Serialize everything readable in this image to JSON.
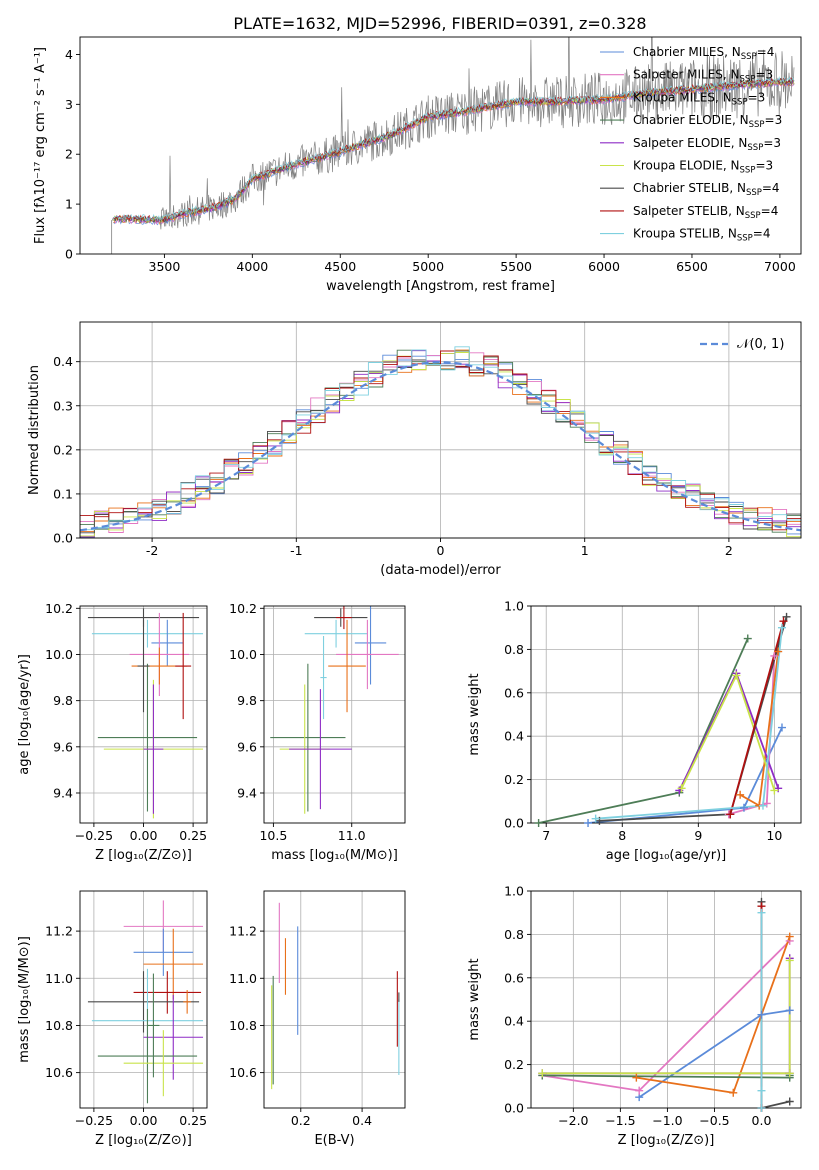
{
  "figure_title": "PLATE=1632, MJD=52996, FIBERID=0391, z=0.328",
  "colors": {
    "Chabrier MILES": "#5b8bd9",
    "Salpeter MILES": "#e377c2",
    "Kroupa MILES": "#e8701a",
    "Chabrier ELODIE": "#4e7d57",
    "Salpeter ELODIE": "#8e2cc5",
    "Kroupa ELODIE": "#c9e34a",
    "Chabrier STELIB": "#4a4a4a",
    "Salpeter STELIB": "#b01010",
    "Kroupa STELIB": "#7fd0df",
    "data": "#808080",
    "normal": "#5b8bd9"
  },
  "chart_data": [
    {
      "id": "spectrum",
      "type": "line",
      "title": "PLATE=1632, MJD=52996, FIBERID=0391, z=0.328",
      "xlabel": "wavelength [Angstrom, rest frame]",
      "ylabel": "Flux [fλ10⁻¹⁷ erg cm⁻² s⁻¹ A⁻¹]",
      "xlim": [
        3020,
        7120
      ],
      "ylim": [
        0,
        4.35
      ],
      "xticks": [
        3500,
        4000,
        4500,
        5000,
        5500,
        6000,
        6500,
        7000
      ],
      "yticks": [
        0,
        1,
        2,
        3,
        4
      ],
      "legend_position": "right",
      "legend": [
        {
          "base": "Chabrier MILES, N",
          "sub": "SSP",
          "tail": "=4"
        },
        {
          "base": "Salpeter MILES, N",
          "sub": "SSP",
          "tail": "=3"
        },
        {
          "base": "Kroupa MILES, N",
          "sub": "SSP",
          "tail": "=3"
        },
        {
          "base": "Chabrier ELODIE, N",
          "sub": "SSP",
          "tail": "=3"
        },
        {
          "base": "Salpeter ELODIE, N",
          "sub": "SSP",
          "tail": "=3"
        },
        {
          "base": "Kroupa ELODIE, N",
          "sub": "SSP",
          "tail": "=3"
        },
        {
          "base": "Chabrier STELIB, N",
          "sub": "SSP",
          "tail": "=4"
        },
        {
          "base": "Salpeter STELIB, N",
          "sub": "SSP",
          "tail": "=4"
        },
        {
          "base": "Kroupa STELIB, N",
          "sub": "SSP",
          "tail": "=4"
        }
      ],
      "series_order": [
        "Chabrier MILES",
        "Salpeter MILES",
        "Kroupa MILES",
        "Chabrier ELODIE",
        "Salpeter ELODIE",
        "Kroupa ELODIE",
        "Chabrier STELIB",
        "Salpeter STELIB",
        "Kroupa STELIB"
      ],
      "model_continuum": {
        "x": [
          3200,
          3300,
          3500,
          3600,
          3700,
          3800,
          3900,
          4000,
          4200,
          4500,
          4800,
          5000,
          5200,
          5500,
          5700,
          6000,
          6300,
          6500,
          6800,
          7000
        ],
        "y": [
          0.7,
          0.7,
          0.68,
          0.8,
          0.87,
          0.95,
          1.1,
          1.5,
          1.75,
          2.05,
          2.4,
          2.75,
          2.85,
          3.05,
          3.05,
          3.1,
          3.25,
          3.3,
          3.4,
          3.45
        ]
      },
      "data_range": [
        3200,
        7080
      ],
      "data_base_noise": 0.25,
      "data_noise_growth": 0.45
    },
    {
      "id": "residual-hist",
      "type": "bar",
      "xlabel": "(data-model)/error",
      "ylabel": "Normed distribution",
      "xlim": [
        -2.5,
        2.5
      ],
      "ylim": [
        0,
        0.49
      ],
      "xticks": [
        -2,
        -1,
        0,
        1,
        2
      ],
      "yticks": [
        0.0,
        0.1,
        0.2,
        0.3,
        0.4
      ],
      "legend_position": "upper right",
      "legend_label": "𝒩(0, 1)",
      "bin_width": 0.1,
      "series_order": [
        "Chabrier MILES",
        "Salpeter MILES",
        "Kroupa MILES",
        "Chabrier ELODIE",
        "Salpeter ELODIE",
        "Kroupa ELODIE",
        "Chabrier STELIB",
        "Salpeter STELIB",
        "Kroupa STELIB"
      ]
    },
    {
      "id": "age-vs-Z",
      "type": "scatter",
      "xlabel": "Z [log₁₀(Z/Z⊙)]",
      "ylabel": "age  [log₁₀(age/yr)]",
      "xlim": [
        -0.32,
        0.32
      ],
      "ylim": [
        9.27,
        10.21
      ],
      "xticks": [
        -0.25,
        0.0,
        0.25
      ],
      "xticklabels": [
        "−0.25",
        "0.00",
        "0.25"
      ],
      "yticks": [
        9.4,
        9.6,
        9.8,
        10.0,
        10.2
      ],
      "points": [
        {
          "s": "Chabrier STELIB",
          "x": 0.0,
          "y": 10.16,
          "xe": 0.28,
          "ye": 0.04
        },
        {
          "s": "Kroupa STELIB",
          "x": 0.02,
          "y": 10.09,
          "xe": 0.28,
          "ye": 0.06
        },
        {
          "s": "Chabrier MILES",
          "x": 0.12,
          "y": 10.05,
          "xe": 0.08,
          "ye": 0.1
        },
        {
          "s": "Salpeter MILES",
          "x": 0.08,
          "y": 10.0,
          "xe": 0.15,
          "ye": 0.18
        },
        {
          "s": "Kroupa MILES",
          "x": 0.08,
          "y": 9.95,
          "xe": 0.14,
          "ye": 0.08
        },
        {
          "s": "Chabrier ELODIE",
          "x": 0.02,
          "y": 9.64,
          "xe": 0.25,
          "ye": 0.32
        },
        {
          "s": "Kroupa ELODIE",
          "x": 0.05,
          "y": 9.59,
          "xe": 0.25,
          "ye": 0.3
        },
        {
          "s": "Salpeter STELIB",
          "x": 0.2,
          "y": 9.95,
          "xe": 0.04,
          "ye": 0.23
        },
        {
          "s": "Chabrier STELIB",
          "x": 0.0,
          "y": 9.95,
          "xe": 0.03,
          "ye": 0.2
        },
        {
          "s": "Salpeter ELODIE",
          "x": 0.05,
          "y": 9.59,
          "xe": 0.05,
          "ye": 0.28
        }
      ]
    },
    {
      "id": "age-vs-mass",
      "type": "scatter",
      "xlabel": "mass [log₁₀(M/M⊙)]",
      "ylabel": "",
      "xlim": [
        10.44,
        11.34
      ],
      "ylim": [
        9.27,
        10.21
      ],
      "xticks": [
        10.5,
        11.0
      ],
      "xticklabels": [
        "10.5",
        "11.0"
      ],
      "yticks": [
        9.4,
        9.6,
        9.8,
        10.0,
        10.2
      ],
      "points": [
        {
          "s": "Chabrier STELIB",
          "x": 10.93,
          "y": 10.16,
          "xe": 0.17,
          "ye": 0.04
        },
        {
          "s": "Salpeter STELIB",
          "x": 10.95,
          "y": 10.16,
          "xe": 0.05,
          "ye": 0.05
        },
        {
          "s": "Kroupa STELIB",
          "x": 10.9,
          "y": 10.09,
          "xe": 0.2,
          "ye": 0.06
        },
        {
          "s": "Chabrier MILES",
          "x": 11.12,
          "y": 10.05,
          "xe": 0.1,
          "ye": 0.18
        },
        {
          "s": "Salpeter MILES",
          "x": 11.1,
          "y": 10.0,
          "xe": 0.2,
          "ye": 0.15
        },
        {
          "s": "Kroupa MILES",
          "x": 10.97,
          "y": 9.95,
          "xe": 0.12,
          "ye": 0.2
        },
        {
          "s": "Chabrier ELODIE",
          "x": 10.72,
          "y": 9.64,
          "xe": 0.24,
          "ye": 0.32
        },
        {
          "s": "Kroupa ELODIE",
          "x": 10.7,
          "y": 9.59,
          "xe": 0.16,
          "ye": 0.28
        },
        {
          "s": "Salpeter ELODIE",
          "x": 10.8,
          "y": 9.59,
          "xe": 0.2,
          "ye": 0.26
        },
        {
          "s": "Kroupa STELIB",
          "x": 10.82,
          "y": 9.9,
          "xe": 0.02,
          "ye": 0.18
        }
      ]
    },
    {
      "id": "weight-vs-age",
      "type": "line",
      "xlabel": "age  [log₁₀(age/yr)]",
      "ylabel": "mass weight",
      "xlim": [
        6.8,
        10.35
      ],
      "ylim": [
        0,
        1.0
      ],
      "xticks": [
        7,
        8,
        9,
        10
      ],
      "yticks": [
        0.0,
        0.2,
        0.4,
        0.6,
        0.8,
        1.0
      ],
      "series": [
        {
          "name": "Chabrier MILES",
          "x": [
            7.55,
            9.6,
            10.1
          ],
          "y": [
            0.0,
            0.07,
            0.44
          ]
        },
        {
          "name": "Salpeter MILES",
          "x": [
            9.4,
            9.9,
            10.0
          ],
          "y": [
            0.04,
            0.09,
            0.77
          ]
        },
        {
          "name": "Kroupa MILES",
          "x": [
            9.55,
            9.8,
            10.05
          ],
          "y": [
            0.13,
            0.08,
            0.79
          ]
        },
        {
          "name": "Chabrier ELODIE",
          "x": [
            6.9,
            8.75,
            9.65
          ],
          "y": [
            0.0,
            0.14,
            0.85
          ]
        },
        {
          "name": "Salpeter ELODIE",
          "x": [
            8.75,
            9.5,
            10.05
          ],
          "y": [
            0.15,
            0.69,
            0.16
          ]
        },
        {
          "name": "Kroupa ELODIE",
          "x": [
            8.78,
            9.5,
            10.0
          ],
          "y": [
            0.16,
            0.68,
            0.15
          ]
        },
        {
          "name": "Chabrier STELIB",
          "x": [
            7.7,
            9.42,
            10.16
          ],
          "y": [
            0.01,
            0.04,
            0.95
          ]
        },
        {
          "name": "Salpeter STELIB",
          "x": [
            9.42,
            10.12
          ],
          "y": [
            0.04,
            0.93
          ]
        },
        {
          "name": "Kroupa STELIB",
          "x": [
            7.65,
            9.85,
            10.1
          ],
          "y": [
            0.02,
            0.08,
            0.9
          ]
        }
      ]
    },
    {
      "id": "mass-vs-Z",
      "type": "scatter",
      "xlabel": "Z [log₁₀(Z/Z⊙)]",
      "ylabel": "mass [log₁₀(M/M⊙)]",
      "xlim": [
        -0.32,
        0.32
      ],
      "ylim": [
        10.45,
        11.37
      ],
      "xticks": [
        -0.25,
        0.0,
        0.25
      ],
      "xticklabels": [
        "−0.25",
        "0.00",
        "0.25"
      ],
      "yticks": [
        10.6,
        10.8,
        11.0,
        11.2
      ],
      "points": [
        {
          "s": "Salpeter MILES",
          "x": 0.1,
          "y": 11.22,
          "xe": 0.2,
          "ye": 0.11
        },
        {
          "s": "Chabrier MILES",
          "x": 0.1,
          "y": 11.11,
          "xe": 0.15,
          "ye": 0.1
        },
        {
          "s": "Kroupa MILES",
          "x": 0.15,
          "y": 11.06,
          "xe": 0.15,
          "ye": 0.15
        },
        {
          "s": "Salpeter STELIB",
          "x": 0.12,
          "y": 10.94,
          "xe": 0.17,
          "ye": 0.09
        },
        {
          "s": "Chabrier STELIB",
          "x": 0.0,
          "y": 10.9,
          "xe": 0.28,
          "ye": 0.13
        },
        {
          "s": "Kroupa STELIB",
          "x": 0.02,
          "y": 10.82,
          "xe": 0.28,
          "ye": 0.22
        },
        {
          "s": "Salpeter ELODIE",
          "x": 0.15,
          "y": 10.75,
          "xe": 0.15,
          "ye": 0.18
        },
        {
          "s": "Chabrier ELODIE",
          "x": 0.02,
          "y": 10.67,
          "xe": 0.25,
          "ye": 0.2
        },
        {
          "s": "Kroupa ELODIE",
          "x": 0.1,
          "y": 10.64,
          "xe": 0.2,
          "ye": 0.14
        },
        {
          "s": "Chabrier ELODIE",
          "x": 0.05,
          "y": 10.8,
          "xe": 0.03,
          "ye": 0.22
        },
        {
          "s": "Kroupa MILES",
          "x": 0.22,
          "y": 10.9,
          "xe": 0.02,
          "ye": 0.05
        }
      ]
    },
    {
      "id": "mass-vs-ebv",
      "type": "scatter",
      "xlabel": "E(B-V)",
      "ylabel": "",
      "xlim": [
        0.08,
        0.54
      ],
      "ylim": [
        10.45,
        11.37
      ],
      "xticks": [
        0.2,
        0.4
      ],
      "xticklabels": [
        "0.2",
        "0.4"
      ],
      "yticks": [
        10.6,
        10.8,
        11.0,
        11.2
      ],
      "points": [
        {
          "s": "Salpeter MILES",
          "x": 0.13,
          "y": 11.15,
          "xe": 0.0,
          "ye": 0.17
        },
        {
          "s": "Kroupa MILES",
          "x": 0.15,
          "y": 11.05,
          "xe": 0.0,
          "ye": 0.12
        },
        {
          "s": "Chabrier MILES",
          "x": 0.19,
          "y": 10.99,
          "xe": 0.0,
          "ye": 0.23
        },
        {
          "s": "Chabrier ELODIE",
          "x": 0.11,
          "y": 10.78,
          "xe": 0.0,
          "ye": 0.23
        },
        {
          "s": "Kroupa ELODIE",
          "x": 0.105,
          "y": 10.75,
          "xe": 0.0,
          "ye": 0.22
        },
        {
          "s": "Salpeter STELIB",
          "x": 0.515,
          "y": 10.87,
          "xe": 0.0,
          "ye": 0.16
        },
        {
          "s": "Kroupa STELIB",
          "x": 0.52,
          "y": 10.75,
          "xe": 0.0,
          "ye": 0.16
        },
        {
          "s": "Chabrier STELIB",
          "x": 0.52,
          "y": 10.92,
          "xe": 0.0,
          "ye": 0.02
        }
      ]
    },
    {
      "id": "weight-vs-Z",
      "type": "line",
      "xlabel": "Z [log₁₀(Z/Z⊙)]",
      "ylabel": "mass weight",
      "xlim": [
        -2.45,
        0.42
      ],
      "ylim": [
        0,
        1.0
      ],
      "xticks": [
        -2.0,
        -1.5,
        -1.0,
        -0.5,
        0.0
      ],
      "xticklabels": [
        "−2.0",
        "−1.5",
        "−1.0",
        "−0.5",
        "0.0"
      ],
      "yticks": [
        0.0,
        0.2,
        0.4,
        0.6,
        0.8,
        1.0
      ],
      "series": [
        {
          "name": "Chabrier MILES",
          "x": [
            -1.3,
            0.0,
            0.3
          ],
          "y": [
            0.05,
            0.43,
            0.45
          ]
        },
        {
          "name": "Salpeter MILES",
          "x": [
            -2.33,
            -1.3,
            0.3
          ],
          "y": [
            0.15,
            0.08,
            0.77
          ]
        },
        {
          "name": "Kroupa MILES",
          "x": [
            -1.33,
            -0.3,
            0.3
          ],
          "y": [
            0.14,
            0.07,
            0.79
          ]
        },
        {
          "name": "Chabrier ELODIE",
          "x": [
            -2.33,
            0.3,
            0.3
          ],
          "y": [
            0.15,
            0.14,
            0.15
          ]
        },
        {
          "name": "Salpeter ELODIE",
          "x": [
            -2.33,
            0.3,
            0.3
          ],
          "y": [
            0.16,
            0.16,
            0.69
          ]
        },
        {
          "name": "Kroupa ELODIE",
          "x": [
            -2.33,
            0.3,
            0.3
          ],
          "y": [
            0.16,
            0.16,
            0.68
          ]
        },
        {
          "name": "Chabrier STELIB",
          "x": [
            0.3,
            0.0,
            0.0
          ],
          "y": [
            0.03,
            0.0,
            0.95
          ]
        },
        {
          "name": "Salpeter STELIB",
          "x": [
            0.0,
            0.0
          ],
          "y": [
            0.0,
            0.93
          ]
        },
        {
          "name": "Kroupa STELIB",
          "x": [
            0.0,
            0.0,
            0.0
          ],
          "y": [
            0.0,
            0.08,
            0.9
          ]
        }
      ]
    }
  ]
}
